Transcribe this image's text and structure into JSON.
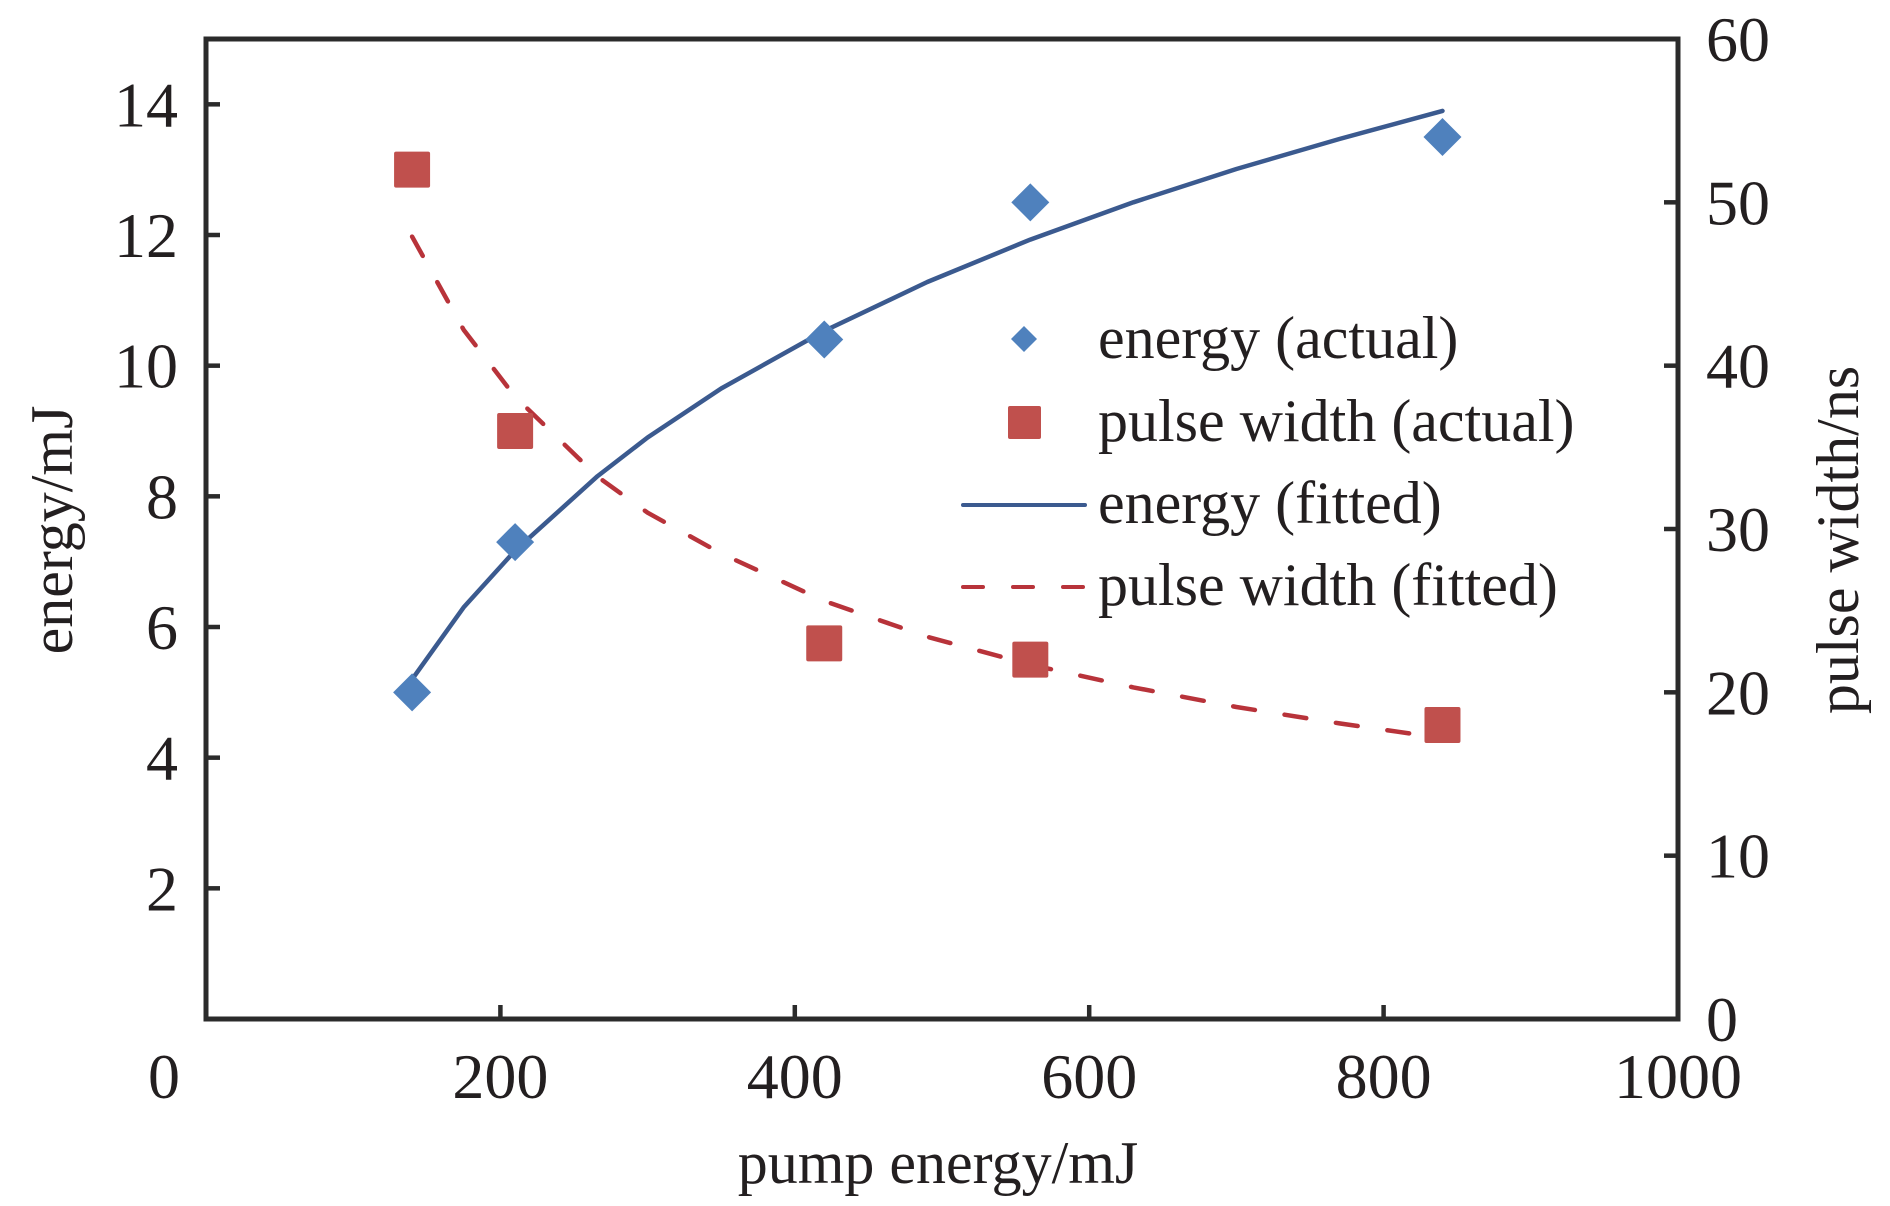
{
  "chart_data": {
    "type": "scatter",
    "title": "",
    "xlabel": "pump energy/mJ",
    "ylabel": "energy/mJ",
    "y2label": "pulse width/ns",
    "xlim": [
      0,
      1000
    ],
    "ylim": [
      0,
      15
    ],
    "y2lim": [
      0,
      60
    ],
    "x_ticks": [
      0,
      200,
      400,
      600,
      800,
      1000
    ],
    "x_tick_labels": [
      "0",
      "200",
      "400",
      "600",
      "800",
      "1000"
    ],
    "y_ticks": [
      2,
      4,
      6,
      8,
      10,
      12,
      14
    ],
    "y_tick_labels": [
      "2",
      "4",
      "6",
      "8",
      "10",
      "12",
      "14"
    ],
    "y2_ticks": [
      0,
      10,
      20,
      30,
      40,
      50,
      60
    ],
    "y2_tick_labels": [
      "0",
      "10",
      "20",
      "30",
      "40",
      "50",
      "60"
    ],
    "grid": false,
    "legend_position": "center-right",
    "series": [
      {
        "name": "energy (actual)",
        "kind": "scatter",
        "marker": "diamond",
        "axis": "left",
        "color": "#4f81bd",
        "x": [
          140,
          210,
          420,
          560,
          840
        ],
        "y": [
          5.0,
          7.3,
          10.4,
          12.5,
          13.5
        ]
      },
      {
        "name": "pulse width (actual)",
        "kind": "scatter",
        "marker": "square",
        "axis": "right",
        "color": "#c0504d",
        "x": [
          140,
          210,
          420,
          560,
          840
        ],
        "y": [
          52,
          36,
          23,
          22,
          18
        ]
      },
      {
        "name": "energy (fitted)",
        "kind": "line",
        "style": "solid",
        "axis": "left",
        "color": "#3b5a8f",
        "x": [
          140,
          175,
          210,
          266,
          300,
          350,
          420,
          490,
          560,
          630,
          700,
          770,
          840
        ],
        "y": [
          5.2,
          6.3,
          7.17,
          8.31,
          8.9,
          9.65,
          10.53,
          11.28,
          11.93,
          12.5,
          13.01,
          13.47,
          13.9
        ]
      },
      {
        "name": "pulse width (fitted)",
        "kind": "line",
        "style": "dashed",
        "axis": "right",
        "color": "#b8333a",
        "x": [
          140,
          175,
          210,
          266,
          300,
          350,
          420,
          490,
          560,
          630,
          700,
          770,
          840
        ],
        "y": [
          47.9,
          42.2,
          38.1,
          33.2,
          31.0,
          28.5,
          25.6,
          23.4,
          21.7,
          20.3,
          19.1,
          18.1,
          17.2
        ]
      }
    ]
  }
}
